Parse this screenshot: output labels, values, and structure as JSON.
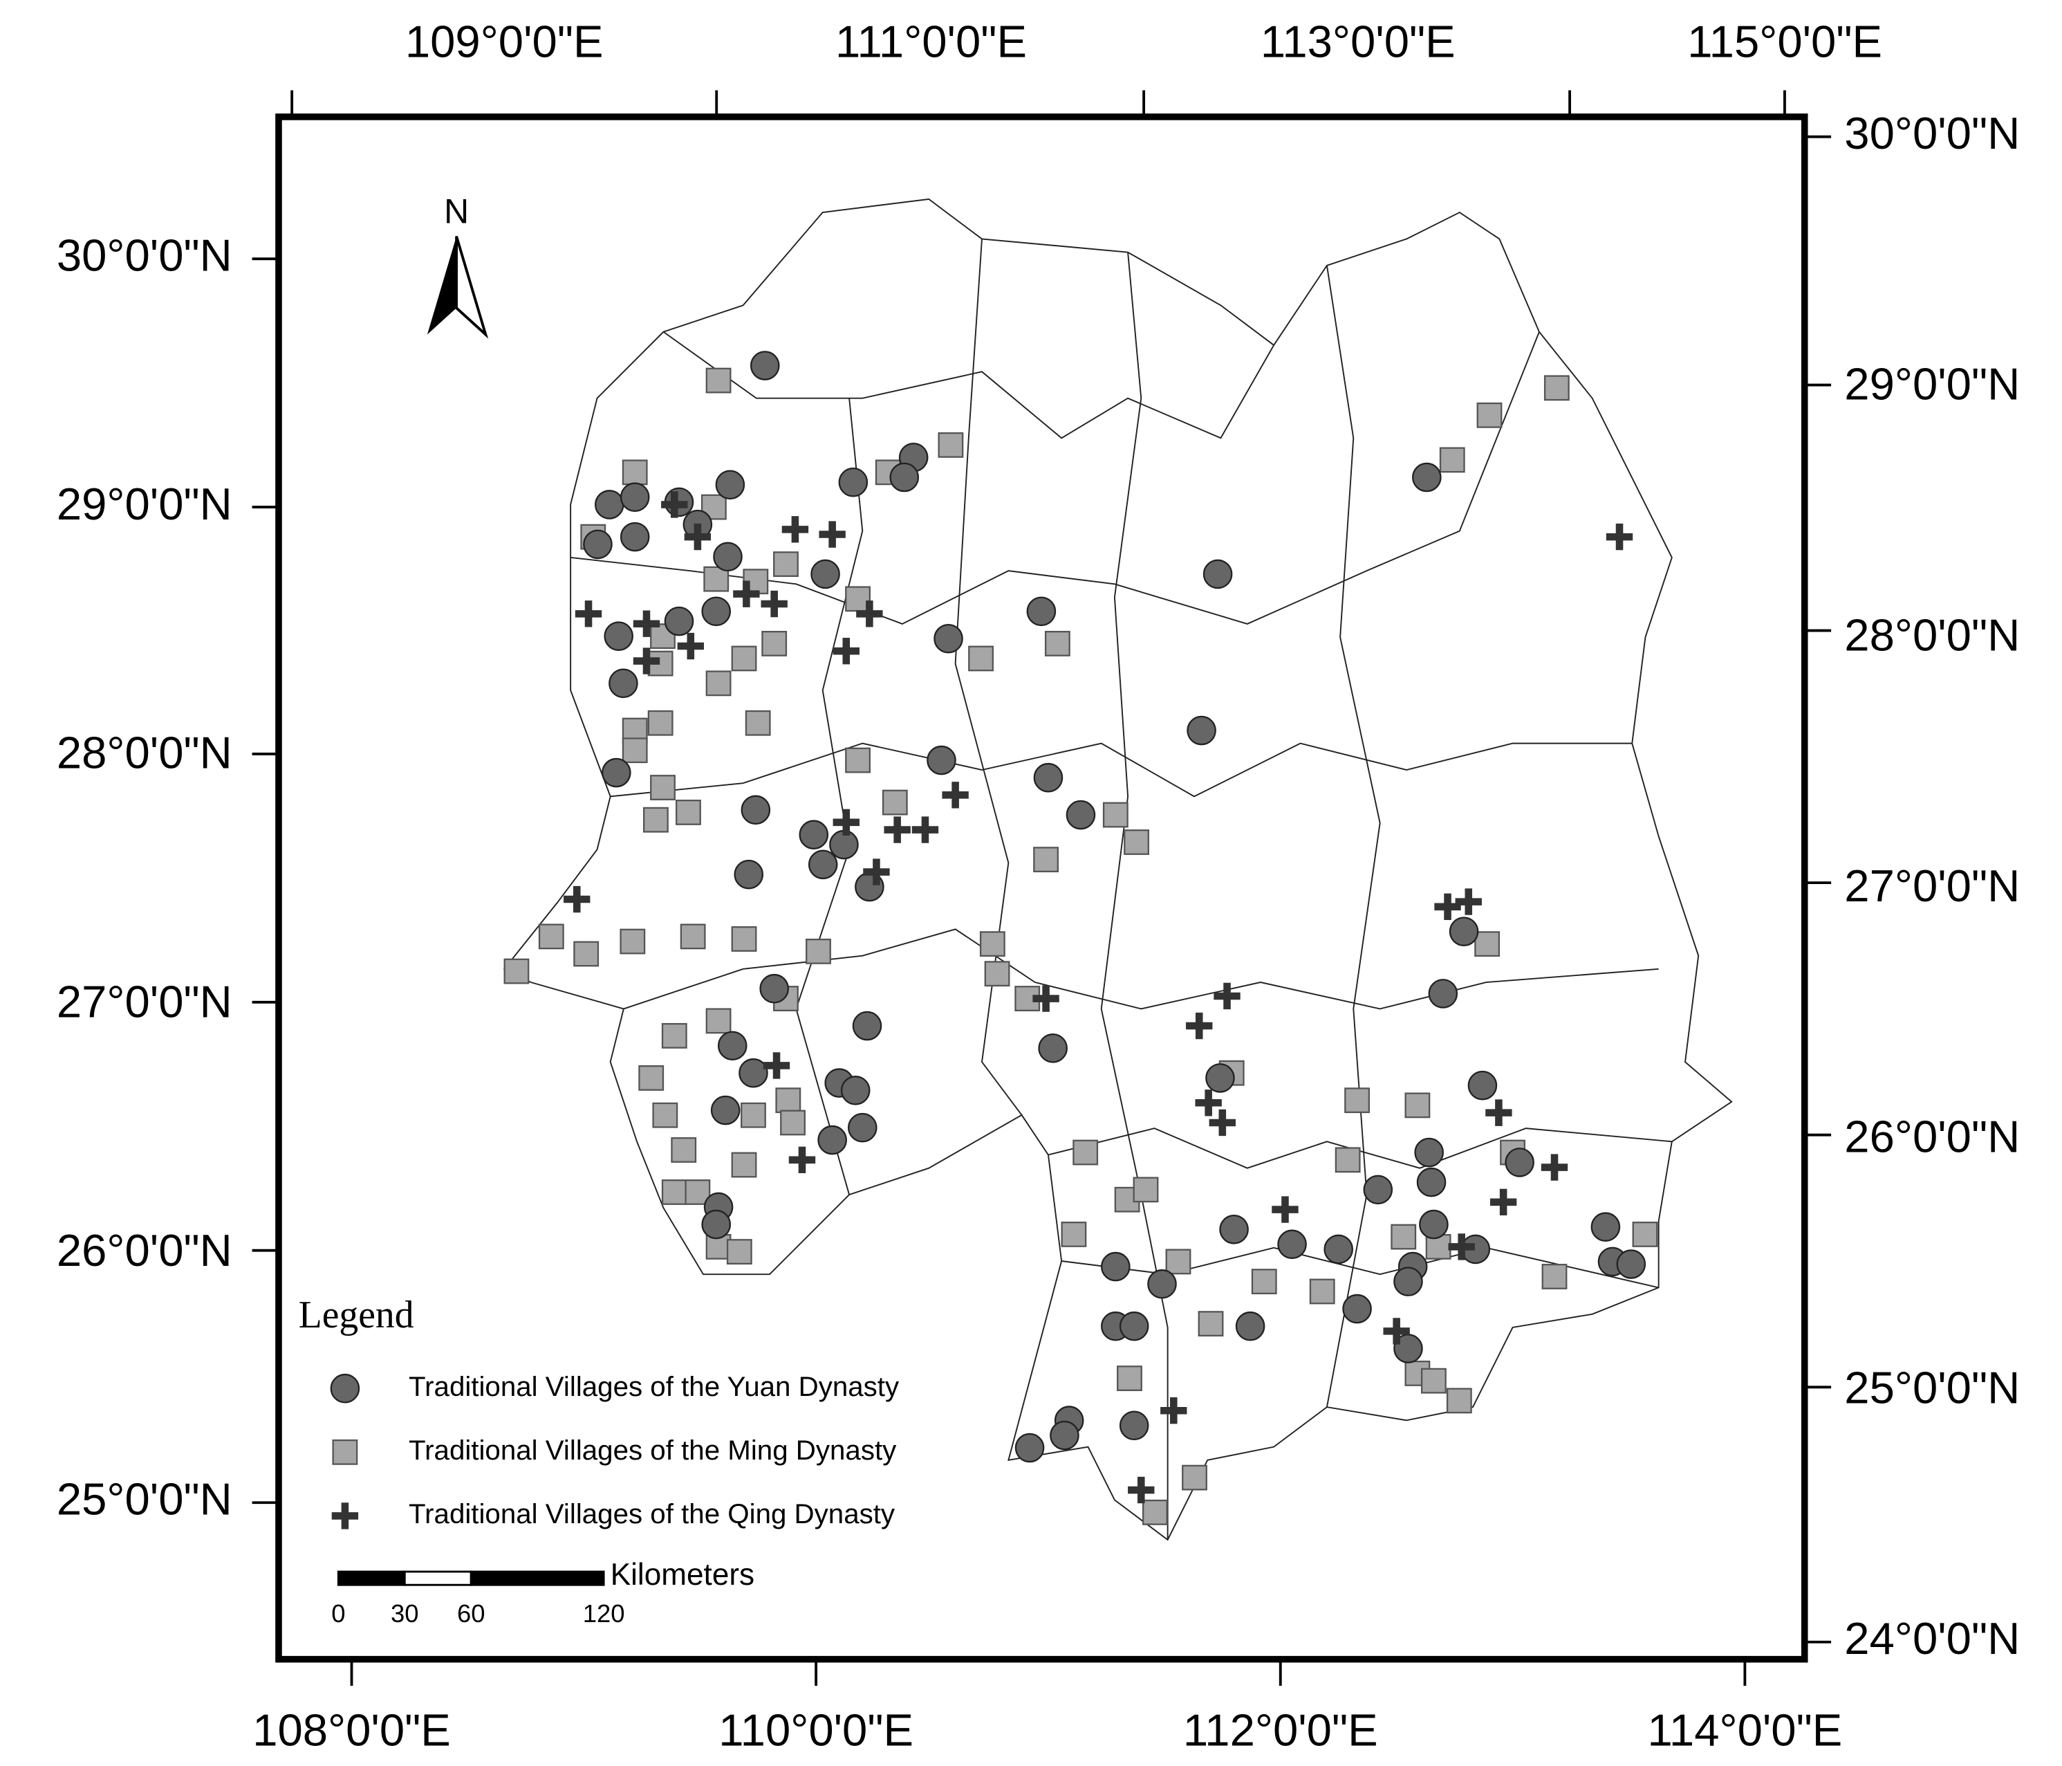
{
  "north_label": "N",
  "legend": {
    "title": "Legend"
  },
  "scale_bar": {
    "unit": "Kilometers",
    "ticks": [
      0,
      30,
      60,
      120
    ]
  },
  "axes": {
    "top": [
      "109°0'0\"E",
      "111°0'0\"E",
      "113°0'0\"E",
      "115°0'0\"E"
    ],
    "bottom": [
      "108°0'0\"E",
      "110°0'0\"E",
      "112°0'0\"E",
      "114°0'0\"E"
    ],
    "left": [
      "30°0'0\"N",
      "29°0'0\"N",
      "28°0'0\"N",
      "27°0'0\"N",
      "26°0'0\"N",
      "25°0'0\"N"
    ],
    "right": [
      "30°0'0\"N",
      "29°0'0\"N",
      "28°0'0\"N",
      "27°0'0\"N",
      "26°0'0\"N",
      "25°0'0\"N",
      "24°0'0\"N"
    ]
  },
  "villages": [
    {
      "name": "Traditional Villages of the Yuan Dynasty",
      "marker": "circle",
      "color": "#666666",
      "points": [
        [
          109.78,
          29.57
        ],
        [
          109.11,
          29.01
        ],
        [
          109.22,
          29.04
        ],
        [
          109.06,
          28.85
        ],
        [
          109.22,
          28.88
        ],
        [
          109.41,
          29.02
        ],
        [
          109.49,
          28.93
        ],
        [
          109.63,
          29.09
        ],
        [
          109.62,
          28.8
        ],
        [
          110.04,
          28.73
        ],
        [
          110.16,
          29.1
        ],
        [
          110.42,
          29.2
        ],
        [
          110.38,
          29.12
        ],
        [
          109.15,
          28.48
        ],
        [
          109.17,
          28.29
        ],
        [
          109.41,
          28.54
        ],
        [
          109.57,
          28.58
        ],
        [
          109.14,
          27.93
        ],
        [
          110.54,
          27.98
        ],
        [
          110.57,
          28.47
        ],
        [
          110.97,
          28.58
        ],
        [
          111.0,
          27.91
        ],
        [
          111.14,
          27.76
        ],
        [
          109.74,
          27.78
        ],
        [
          109.99,
          27.68
        ],
        [
          110.12,
          27.64
        ],
        [
          110.03,
          27.56
        ],
        [
          109.71,
          27.52
        ],
        [
          110.23,
          27.47
        ],
        [
          111.73,
          28.73
        ],
        [
          111.66,
          28.1
        ],
        [
          112.63,
          29.12
        ],
        [
          109.82,
          27.06
        ],
        [
          110.22,
          26.91
        ],
        [
          109.64,
          26.83
        ],
        [
          109.73,
          26.72
        ],
        [
          109.61,
          26.57
        ],
        [
          110.1,
          26.68
        ],
        [
          110.17,
          26.65
        ],
        [
          110.2,
          26.5
        ],
        [
          110.07,
          26.45
        ],
        [
          109.58,
          26.18
        ],
        [
          109.57,
          26.11
        ],
        [
          111.02,
          26.82
        ],
        [
          111.74,
          26.7
        ],
        [
          112.79,
          27.29
        ],
        [
          112.7,
          27.04
        ],
        [
          112.87,
          26.67
        ],
        [
          113.03,
          26.36
        ],
        [
          112.64,
          26.4
        ],
        [
          112.65,
          26.28
        ],
        [
          112.66,
          26.11
        ],
        [
          112.84,
          26.01
        ],
        [
          112.42,
          26.25
        ],
        [
          112.25,
          26.01
        ],
        [
          112.33,
          25.77
        ],
        [
          111.8,
          26.09
        ],
        [
          112.05,
          26.03
        ],
        [
          111.29,
          25.94
        ],
        [
          111.49,
          25.87
        ],
        [
          111.29,
          25.7
        ],
        [
          111.37,
          25.7
        ],
        [
          111.87,
          25.7
        ],
        [
          112.55,
          25.61
        ],
        [
          112.57,
          25.94
        ],
        [
          113.4,
          26.1
        ],
        [
          113.43,
          25.96
        ],
        [
          113.51,
          25.95
        ],
        [
          111.37,
          25.3
        ],
        [
          111.09,
          25.32
        ],
        [
          111.07,
          25.26
        ],
        [
          110.92,
          25.21
        ],
        [
          112.55,
          25.88
        ]
      ]
    },
    {
      "name": "Traditional Villages of the Ming Dynasty",
      "marker": "square",
      "color": "#a6a6a6",
      "points": [
        [
          109.58,
          29.51
        ],
        [
          110.58,
          29.25
        ],
        [
          113.19,
          29.48
        ],
        [
          112.9,
          29.37
        ],
        [
          112.74,
          29.19
        ],
        [
          109.22,
          29.14
        ],
        [
          109.04,
          28.88
        ],
        [
          109.56,
          29.0
        ],
        [
          109.57,
          28.71
        ],
        [
          109.74,
          28.7
        ],
        [
          109.87,
          28.77
        ],
        [
          110.18,
          28.63
        ],
        [
          110.31,
          29.14
        ],
        [
          109.82,
          28.45
        ],
        [
          109.69,
          28.39
        ],
        [
          109.58,
          28.29
        ],
        [
          109.33,
          28.37
        ],
        [
          109.34,
          28.48
        ],
        [
          110.71,
          28.39
        ],
        [
          111.04,
          28.45
        ],
        [
          109.22,
          28.1
        ],
        [
          109.33,
          28.13
        ],
        [
          109.22,
          28.02
        ],
        [
          109.75,
          28.13
        ],
        [
          109.34,
          27.87
        ],
        [
          109.45,
          27.77
        ],
        [
          109.31,
          27.74
        ],
        [
          110.18,
          27.98
        ],
        [
          110.34,
          27.81
        ],
        [
          111.29,
          27.76
        ],
        [
          111.38,
          27.65
        ],
        [
          110.99,
          27.58
        ],
        [
          108.71,
          27.13
        ],
        [
          108.86,
          27.27
        ],
        [
          109.01,
          27.2
        ],
        [
          109.21,
          27.25
        ],
        [
          109.47,
          27.27
        ],
        [
          109.69,
          27.26
        ],
        [
          110.01,
          27.21
        ],
        [
          109.87,
          27.02
        ],
        [
          110.76,
          27.24
        ],
        [
          110.78,
          27.12
        ],
        [
          110.91,
          27.02
        ],
        [
          109.39,
          26.87
        ],
        [
          109.58,
          26.93
        ],
        [
          109.29,
          26.7
        ],
        [
          109.35,
          26.55
        ],
        [
          109.88,
          26.61
        ],
        [
          109.9,
          26.52
        ],
        [
          109.73,
          26.55
        ],
        [
          109.43,
          26.41
        ],
        [
          109.69,
          26.35
        ],
        [
          109.39,
          26.24
        ],
        [
          109.49,
          26.24
        ],
        [
          109.58,
          26.02
        ],
        [
          109.67,
          26.0
        ],
        [
          111.16,
          26.4
        ],
        [
          111.11,
          26.07
        ],
        [
          111.34,
          26.21
        ],
        [
          111.42,
          26.25
        ],
        [
          111.56,
          25.96
        ],
        [
          111.7,
          25.71
        ],
        [
          111.93,
          25.88
        ],
        [
          112.18,
          25.84
        ],
        [
          112.29,
          26.37
        ],
        [
          112.33,
          26.61
        ],
        [
          112.59,
          26.59
        ],
        [
          112.53,
          26.06
        ],
        [
          112.68,
          26.02
        ],
        [
          113.0,
          26.4
        ],
        [
          113.18,
          25.9
        ],
        [
          113.57,
          26.07
        ],
        [
          111.35,
          25.49
        ],
        [
          112.59,
          25.51
        ],
        [
          112.66,
          25.48
        ],
        [
          112.77,
          25.4
        ],
        [
          111.63,
          25.09
        ],
        [
          111.46,
          24.95
        ],
        [
          111.79,
          26.72
        ],
        [
          112.89,
          27.24
        ]
      ]
    },
    {
      "name": "Traditional Villages of the Qing Dynasty",
      "marker": "cross",
      "color": "#333333",
      "points": [
        [
          109.02,
          28.57
        ],
        [
          109.27,
          28.53
        ],
        [
          109.46,
          28.44
        ],
        [
          109.27,
          28.38
        ],
        [
          109.7,
          28.65
        ],
        [
          109.82,
          28.61
        ],
        [
          109.91,
          28.91
        ],
        [
          110.07,
          28.89
        ],
        [
          110.23,
          28.57
        ],
        [
          110.13,
          28.42
        ],
        [
          110.6,
          27.84
        ],
        [
          110.13,
          27.73
        ],
        [
          110.35,
          27.7
        ],
        [
          110.47,
          27.7
        ],
        [
          110.26,
          27.53
        ],
        [
          108.97,
          27.42
        ],
        [
          109.83,
          26.75
        ],
        [
          109.94,
          26.37
        ],
        [
          110.99,
          27.02
        ],
        [
          111.77,
          27.03
        ],
        [
          111.65,
          26.91
        ],
        [
          111.69,
          26.6
        ],
        [
          111.75,
          26.52
        ],
        [
          112.02,
          26.17
        ],
        [
          112.72,
          27.39
        ],
        [
          112.81,
          27.41
        ],
        [
          112.94,
          26.56
        ],
        [
          112.96,
          26.2
        ],
        [
          113.18,
          26.34
        ],
        [
          112.78,
          26.02
        ],
        [
          112.5,
          25.68
        ],
        [
          111.54,
          25.36
        ],
        [
          111.4,
          25.04
        ],
        [
          113.46,
          28.88
        ],
        [
          109.39,
          29.01
        ],
        [
          109.49,
          28.88
        ]
      ]
    }
  ]
}
